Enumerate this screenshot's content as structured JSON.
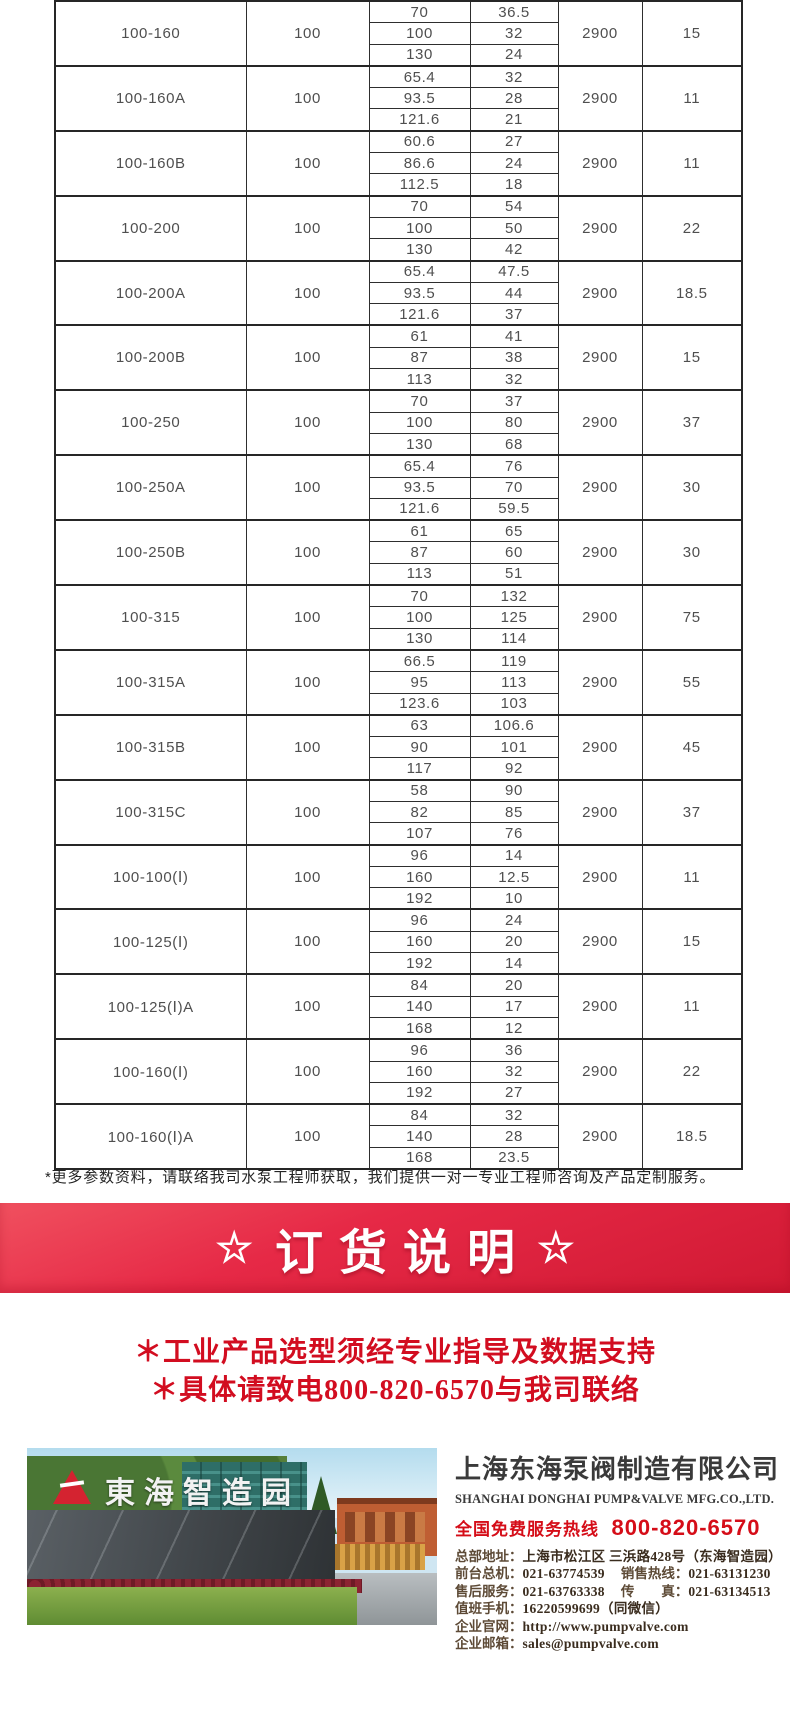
{
  "table": {
    "speed_all": "2900",
    "rows": [
      {
        "model": "100-160",
        "dn": "100",
        "points": [
          [
            "70",
            "36.5"
          ],
          [
            "100",
            "32"
          ],
          [
            "130",
            "24"
          ]
        ],
        "speed": "2900",
        "power": "15"
      },
      {
        "model": "100-160A",
        "dn": "100",
        "points": [
          [
            "65.4",
            "32"
          ],
          [
            "93.5",
            "28"
          ],
          [
            "121.6",
            "21"
          ]
        ],
        "speed": "2900",
        "power": "11"
      },
      {
        "model": "100-160B",
        "dn": "100",
        "points": [
          [
            "60.6",
            "27"
          ],
          [
            "86.6",
            "24"
          ],
          [
            "112.5",
            "18"
          ]
        ],
        "speed": "2900",
        "power": "11"
      },
      {
        "model": "100-200",
        "dn": "100",
        "points": [
          [
            "70",
            "54"
          ],
          [
            "100",
            "50"
          ],
          [
            "130",
            "42"
          ]
        ],
        "speed": "2900",
        "power": "22"
      },
      {
        "model": "100-200A",
        "dn": "100",
        "points": [
          [
            "65.4",
            "47.5"
          ],
          [
            "93.5",
            "44"
          ],
          [
            "121.6",
            "37"
          ]
        ],
        "speed": "2900",
        "power": "18.5"
      },
      {
        "model": "100-200B",
        "dn": "100",
        "points": [
          [
            "61",
            "41"
          ],
          [
            "87",
            "38"
          ],
          [
            "113",
            "32"
          ]
        ],
        "speed": "2900",
        "power": "15"
      },
      {
        "model": "100-250",
        "dn": "100",
        "points": [
          [
            "70",
            "37"
          ],
          [
            "100",
            "80"
          ],
          [
            "130",
            "68"
          ]
        ],
        "speed": "2900",
        "power": "37"
      },
      {
        "model": "100-250A",
        "dn": "100",
        "points": [
          [
            "65.4",
            "76"
          ],
          [
            "93.5",
            "70"
          ],
          [
            "121.6",
            "59.5"
          ]
        ],
        "speed": "2900",
        "power": "30"
      },
      {
        "model": "100-250B",
        "dn": "100",
        "points": [
          [
            "61",
            "65"
          ],
          [
            "87",
            "60"
          ],
          [
            "113",
            "51"
          ]
        ],
        "speed": "2900",
        "power": "30"
      },
      {
        "model": "100-315",
        "dn": "100",
        "points": [
          [
            "70",
            "132"
          ],
          [
            "100",
            "125"
          ],
          [
            "130",
            "114"
          ]
        ],
        "speed": "2900",
        "power": "75"
      },
      {
        "model": "100-315A",
        "dn": "100",
        "points": [
          [
            "66.5",
            "119"
          ],
          [
            "95",
            "113"
          ],
          [
            "123.6",
            "103"
          ]
        ],
        "speed": "2900",
        "power": "55"
      },
      {
        "model": "100-315B",
        "dn": "100",
        "points": [
          [
            "63",
            "106.6"
          ],
          [
            "90",
            "101"
          ],
          [
            "117",
            "92"
          ]
        ],
        "speed": "2900",
        "power": "45"
      },
      {
        "model": "100-315C",
        "dn": "100",
        "points": [
          [
            "58",
            "90"
          ],
          [
            "82",
            "85"
          ],
          [
            "107",
            "76"
          ]
        ],
        "speed": "2900",
        "power": "37"
      },
      {
        "model": "100-100(Ⅰ)",
        "dn": "100",
        "points": [
          [
            "96",
            "14"
          ],
          [
            "160",
            "12.5"
          ],
          [
            "192",
            "10"
          ]
        ],
        "speed": "2900",
        "power": "11"
      },
      {
        "model": "100-125(Ⅰ)",
        "dn": "100",
        "points": [
          [
            "96",
            "24"
          ],
          [
            "160",
            "20"
          ],
          [
            "192",
            "14"
          ]
        ],
        "speed": "2900",
        "power": "15"
      },
      {
        "model": "100-125(Ⅰ)A",
        "dn": "100",
        "points": [
          [
            "84",
            "20"
          ],
          [
            "140",
            "17"
          ],
          [
            "168",
            "12"
          ]
        ],
        "speed": "2900",
        "power": "11"
      },
      {
        "model": "100-160(Ⅰ)",
        "dn": "100",
        "points": [
          [
            "96",
            "36"
          ],
          [
            "160",
            "32"
          ],
          [
            "192",
            "27"
          ]
        ],
        "speed": "2900",
        "power": "22"
      },
      {
        "model": "100-160(Ⅰ)A",
        "dn": "100",
        "points": [
          [
            "84",
            "32"
          ],
          [
            "140",
            "28"
          ],
          [
            "168",
            "23.5"
          ]
        ],
        "speed": "2900",
        "power": "18.5"
      }
    ]
  },
  "footnote": "*更多参数资料，请联络我司水泵工程师获取，我们提供一对一专业工程师咨询及产品定制服务。",
  "banner": {
    "star_left": "☆",
    "title": "订货说明",
    "star_right": "☆",
    "background_red": "#e62946"
  },
  "notice": {
    "lines": [
      "＊工业产品选型须经专业指导及数据支持",
      "＊具体请致电800-820-6570与我司联络"
    ],
    "text_red": "#d20d20"
  },
  "footer": {
    "photo_sign": "東海智造园",
    "company_cn": "上海东海泵阀制造有限公司",
    "company_en": "SHANGHAI DONGHAI PUMP&VALVE MFG.CO.,LTD.",
    "hotline_label": "全国免费服务热线",
    "hotline_number": "800-820-6570",
    "hotline_red": "#d50d18",
    "contact_lines": [
      [
        {
          "label": "总部地址：",
          "value": "上海市松江区 三浜路428号（东海智造园）"
        }
      ],
      [
        {
          "label": "前台总机：",
          "value": "021-63774539"
        },
        {
          "label": "销售热线：",
          "value": "021-63131230"
        }
      ],
      [
        {
          "label": "售后服务：",
          "value": "021-63763338"
        },
        {
          "label": "传　　真：",
          "value": "021-63134513"
        }
      ],
      [
        {
          "label": "值班手机：",
          "value": "16220599699（同微信）"
        }
      ],
      [
        {
          "label": "企业官网：",
          "value": "http://www.pumpvalve.com"
        }
      ],
      [
        {
          "label": "企业邮箱：",
          "value": "sales@pumpvalve.com"
        }
      ]
    ]
  }
}
